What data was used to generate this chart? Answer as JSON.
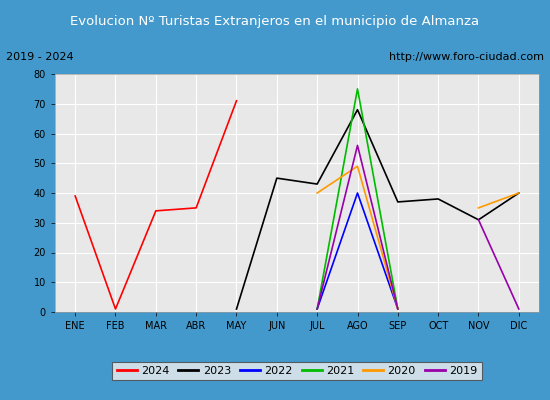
{
  "title": "Evolucion Nº Turistas Extranjeros en el municipio de Almanza",
  "subtitle_left": "2019 - 2024",
  "subtitle_right": "http://www.foro-ciudad.com",
  "months": [
    "ENE",
    "FEB",
    "MAR",
    "ABR",
    "MAY",
    "JUN",
    "JUL",
    "AGO",
    "SEP",
    "OCT",
    "NOV",
    "DIC"
  ],
  "series": {
    "2024": [
      39,
      1,
      34,
      35,
      71,
      null,
      null,
      null,
      null,
      null,
      null,
      null
    ],
    "2023": [
      null,
      null,
      null,
      null,
      1,
      45,
      43,
      68,
      37,
      38,
      31,
      40
    ],
    "2022": [
      null,
      null,
      null,
      null,
      null,
      null,
      1,
      40,
      1,
      null,
      null,
      null
    ],
    "2021": [
      null,
      null,
      null,
      null,
      null,
      null,
      1,
      75,
      1,
      null,
      null,
      null
    ],
    "2020": [
      null,
      null,
      null,
      null,
      null,
      null,
      40,
      49,
      1,
      null,
      35,
      40
    ],
    "2019": [
      null,
      null,
      null,
      null,
      null,
      null,
      1,
      56,
      1,
      null,
      31,
      1
    ]
  },
  "colors": {
    "2024": "#ff0000",
    "2023": "#000000",
    "2022": "#0000ff",
    "2021": "#00bb00",
    "2020": "#ff9900",
    "2019": "#9900aa"
  },
  "ylim": [
    0,
    80
  ],
  "yticks": [
    0,
    10,
    20,
    30,
    40,
    50,
    60,
    70,
    80
  ],
  "title_bg": "#4499cc",
  "title_color": "#ffffff",
  "subtitle_bg": "#dddddd",
  "plot_bg": "#e8e8e8",
  "grid_color": "#ffffff",
  "outer_bg": "#4499cc"
}
